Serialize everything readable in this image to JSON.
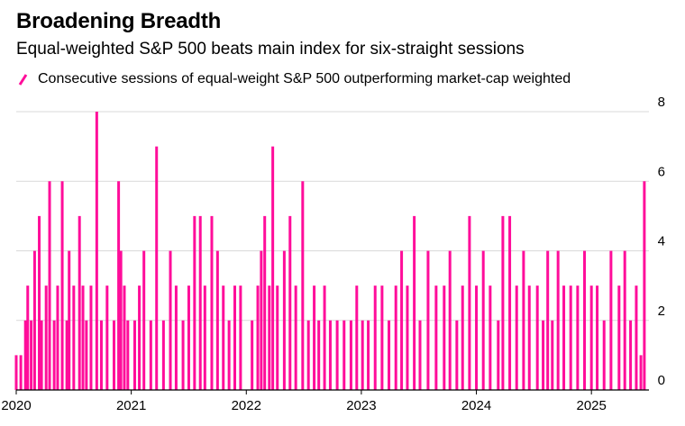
{
  "header": {
    "title": "Broadening Breadth",
    "subtitle": "Equal-weighted S&P 500 beats main index for six-straight sessions"
  },
  "legend": {
    "label": "Consecutive sessions of equal-weight S&P 500 outperforming market-cap weighted",
    "icon": "slash-line-icon"
  },
  "colors": {
    "series": "#ff0d9a",
    "grid": "#d9d9d9",
    "axis": "#000000"
  },
  "chart_data": {
    "type": "area",
    "title": "Broadening Breadth",
    "subtitle": "Equal-weighted S&P 500 beats main index for six-straight sessions",
    "xlabel": "",
    "ylabel": "",
    "xlim": [
      2020.0,
      2025.5
    ],
    "ylim": [
      0,
      8
    ],
    "yticks": [
      "0",
      "2",
      "4",
      "6",
      "8"
    ],
    "xticks": [
      "2020",
      "2021",
      "2022",
      "2023",
      "2024",
      "2025"
    ],
    "grid": true,
    "legend_position": "top-left",
    "series": [
      {
        "name": "Consecutive sessions of equal-weight S&P 500 outperforming market-cap weighted",
        "x": [
          2020.0,
          2020.04,
          2020.08,
          2020.1,
          2020.13,
          2020.16,
          2020.2,
          2020.22,
          2020.26,
          2020.29,
          2020.33,
          2020.36,
          2020.4,
          2020.44,
          2020.46,
          2020.5,
          2020.55,
          2020.58,
          2020.61,
          2020.65,
          2020.7,
          2020.74,
          2020.79,
          2020.85,
          2020.89,
          2020.91,
          2020.94,
          2020.97,
          2021.03,
          2021.07,
          2021.11,
          2021.17,
          2021.22,
          2021.28,
          2021.34,
          2021.39,
          2021.45,
          2021.5,
          2021.55,
          2021.6,
          2021.64,
          2021.7,
          2021.75,
          2021.8,
          2021.85,
          2021.9,
          2021.95,
          2022.05,
          2022.1,
          2022.13,
          2022.16,
          2022.2,
          2022.23,
          2022.27,
          2022.33,
          2022.38,
          2022.43,
          2022.49,
          2022.54,
          2022.59,
          2022.63,
          2022.68,
          2022.73,
          2022.79,
          2022.85,
          2022.91,
          2022.96,
          2023.01,
          2023.06,
          2023.12,
          2023.18,
          2023.24,
          2023.3,
          2023.35,
          2023.4,
          2023.46,
          2023.51,
          2023.58,
          2023.65,
          2023.72,
          2023.77,
          2023.83,
          2023.88,
          2023.94,
          2024.0,
          2024.06,
          2024.12,
          2024.19,
          2024.23,
          2024.29,
          2024.35,
          2024.41,
          2024.46,
          2024.53,
          2024.58,
          2024.62,
          2024.66,
          2024.71,
          2024.76,
          2024.82,
          2024.88,
          2024.94,
          2025.0,
          2025.05,
          2025.11,
          2025.17,
          2025.24,
          2025.29,
          2025.34,
          2025.39,
          2025.43,
          2025.46
        ],
        "values": [
          1,
          1,
          2,
          3,
          2,
          4,
          5,
          2,
          3,
          6,
          2,
          3,
          6,
          2,
          4,
          3,
          5,
          3,
          2,
          3,
          8,
          2,
          3,
          2,
          6,
          4,
          3,
          2,
          2,
          3,
          4,
          2,
          7,
          2,
          4,
          3,
          2,
          3,
          5,
          5,
          3,
          5,
          4,
          3,
          2,
          3,
          3,
          2,
          3,
          4,
          5,
          3,
          7,
          3,
          4,
          5,
          3,
          6,
          2,
          3,
          2,
          3,
          2,
          2,
          2,
          2,
          3,
          2,
          2,
          3,
          3,
          2,
          3,
          4,
          3,
          5,
          2,
          4,
          3,
          3,
          4,
          2,
          3,
          5,
          3,
          4,
          3,
          2,
          5,
          5,
          3,
          4,
          3,
          3,
          2,
          4,
          2,
          4,
          3,
          3,
          3,
          4,
          3,
          3,
          2,
          4,
          3,
          4,
          2,
          3,
          1,
          6
        ]
      }
    ]
  }
}
